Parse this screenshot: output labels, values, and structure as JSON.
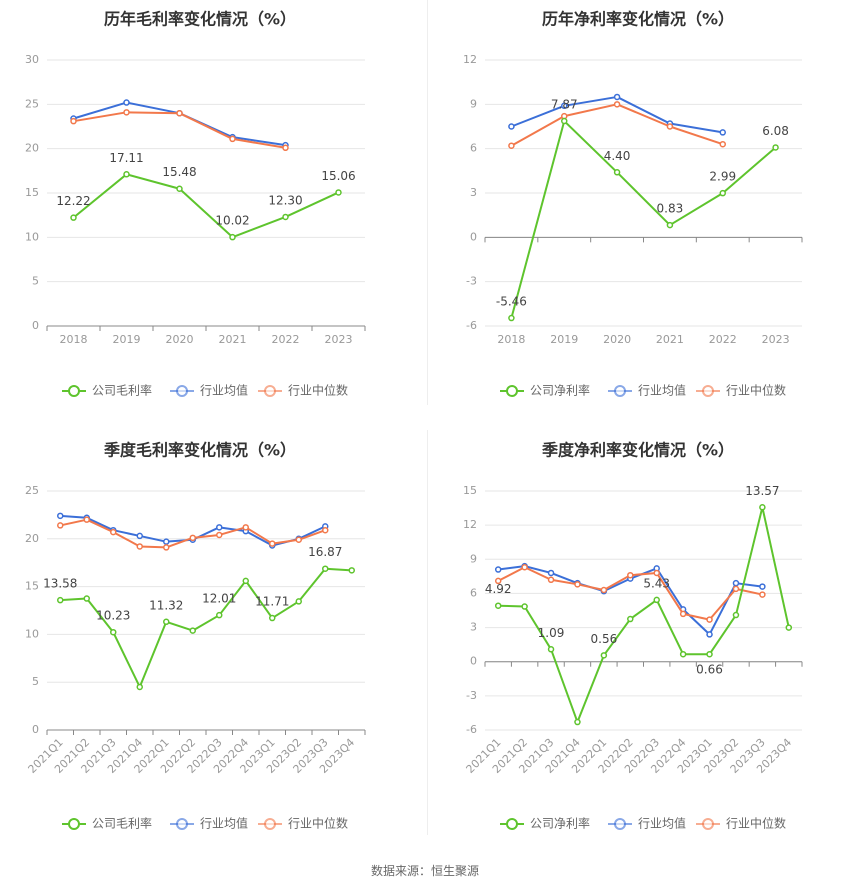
{
  "colors": {
    "company": "#5ec42d",
    "average": "#3b6fd8",
    "median": "#f2784b",
    "grid": "#e6e6e6",
    "axis": "#888888",
    "tick_text": "#999999",
    "label_text": "#444444",
    "title_text": "#333333"
  },
  "footer": "数据来源：恒生聚源",
  "chart_data": [
    {
      "id": "annual-gross",
      "type": "line",
      "title": "历年毛利率变化情况（%）",
      "categories": [
        "2018",
        "2019",
        "2020",
        "2021",
        "2022",
        "2023"
      ],
      "yticks": [
        0,
        5,
        10,
        15,
        20,
        25,
        30
      ],
      "ylim": [
        0,
        30
      ],
      "series": [
        {
          "name": "公司毛利率",
          "key": "company",
          "values": [
            12.22,
            17.11,
            15.48,
            10.02,
            12.3,
            15.06
          ]
        },
        {
          "name": "行业均值",
          "key": "average",
          "values": [
            23.4,
            25.2,
            24.0,
            21.3,
            20.4,
            null
          ]
        },
        {
          "name": "行业中位数",
          "key": "median",
          "values": [
            23.1,
            24.1,
            24.0,
            21.1,
            20.1,
            null
          ]
        }
      ],
      "data_labels": [
        {
          "index": 0,
          "text": "12.22",
          "pos": "above"
        },
        {
          "index": 1,
          "text": "17.11",
          "pos": "above"
        },
        {
          "index": 2,
          "text": "15.48",
          "pos": "above"
        },
        {
          "index": 3,
          "text": "10.02",
          "pos": "above"
        },
        {
          "index": 4,
          "text": "12.30",
          "pos": "above"
        },
        {
          "index": 5,
          "text": "15.06",
          "pos": "above"
        }
      ]
    },
    {
      "id": "annual-net",
      "type": "line",
      "title": "历年净利率变化情况（%）",
      "categories": [
        "2018",
        "2019",
        "2020",
        "2021",
        "2022",
        "2023"
      ],
      "yticks": [
        -6,
        -3,
        0,
        3,
        6,
        9,
        12
      ],
      "ylim": [
        -6,
        12
      ],
      "series": [
        {
          "name": "公司净利率",
          "key": "company",
          "values": [
            -5.46,
            7.87,
            4.4,
            0.83,
            2.99,
            6.08
          ]
        },
        {
          "name": "行业均值",
          "key": "average",
          "values": [
            7.5,
            8.9,
            9.5,
            7.7,
            7.1,
            null
          ]
        },
        {
          "name": "行业中位数",
          "key": "median",
          "values": [
            6.2,
            8.2,
            9.0,
            7.5,
            6.3,
            null
          ]
        }
      ],
      "data_labels": [
        {
          "index": 0,
          "text": "-5.46",
          "pos": "above"
        },
        {
          "index": 1,
          "text": "7.87",
          "pos": "above"
        },
        {
          "index": 2,
          "text": "4.40",
          "pos": "above"
        },
        {
          "index": 3,
          "text": "0.83",
          "pos": "above"
        },
        {
          "index": 4,
          "text": "2.99",
          "pos": "above"
        },
        {
          "index": 5,
          "text": "6.08",
          "pos": "above"
        }
      ]
    },
    {
      "id": "quarterly-gross",
      "type": "line",
      "title": "季度毛利率变化情况（%）",
      "categories": [
        "2021Q1",
        "2021Q2",
        "2021Q3",
        "2021Q4",
        "2022Q1",
        "2022Q2",
        "2022Q3",
        "2022Q4",
        "2023Q1",
        "2023Q2",
        "2023Q3",
        "2023Q4"
      ],
      "yticks": [
        0,
        5,
        10,
        15,
        20,
        25
      ],
      "ylim": [
        0,
        25
      ],
      "rotate_x": true,
      "series": [
        {
          "name": "公司毛利率",
          "key": "company",
          "values": [
            13.58,
            13.75,
            10.23,
            4.5,
            11.32,
            10.4,
            12.01,
            15.6,
            11.71,
            13.45,
            16.87,
            16.7
          ]
        },
        {
          "name": "行业均值",
          "key": "average",
          "values": [
            22.4,
            22.2,
            20.9,
            20.3,
            19.7,
            19.9,
            21.2,
            20.8,
            19.3,
            20.0,
            21.3,
            null
          ]
        },
        {
          "name": "行业中位数",
          "key": "median",
          "values": [
            21.4,
            22.0,
            20.7,
            19.2,
            19.1,
            20.1,
            20.4,
            21.2,
            19.5,
            19.9,
            20.9,
            null
          ]
        }
      ],
      "data_labels": [
        {
          "index": 0,
          "text": "13.58",
          "pos": "above"
        },
        {
          "index": 2,
          "text": "10.23",
          "pos": "above"
        },
        {
          "index": 4,
          "text": "11.32",
          "pos": "above"
        },
        {
          "index": 6,
          "text": "12.01",
          "pos": "above"
        },
        {
          "index": 8,
          "text": "11.71",
          "pos": "above"
        },
        {
          "index": 10,
          "text": "16.87",
          "pos": "above"
        }
      ]
    },
    {
      "id": "quarterly-net",
      "type": "line",
      "title": "季度净利率变化情况（%）",
      "categories": [
        "2021Q1",
        "2021Q2",
        "2021Q3",
        "2021Q4",
        "2022Q1",
        "2022Q2",
        "2022Q3",
        "2022Q4",
        "2023Q1",
        "2023Q2",
        "2023Q3",
        "2023Q4"
      ],
      "yticks": [
        -6,
        -3,
        0,
        3,
        6,
        9,
        12,
        15
      ],
      "ylim": [
        -6,
        15
      ],
      "rotate_x": true,
      "series": [
        {
          "name": "公司净利率",
          "key": "company",
          "values": [
            4.92,
            4.85,
            1.09,
            -5.3,
            0.56,
            3.75,
            5.43,
            0.66,
            0.66,
            4.1,
            13.57,
            3.0
          ]
        },
        {
          "name": "行业均值",
          "key": "average",
          "values": [
            8.1,
            8.4,
            7.8,
            6.9,
            6.2,
            7.3,
            8.2,
            4.6,
            2.4,
            6.9,
            6.6,
            null
          ]
        },
        {
          "name": "行业中位数",
          "key": "median",
          "values": [
            7.1,
            8.3,
            7.2,
            6.8,
            6.3,
            7.6,
            7.8,
            4.2,
            3.7,
            6.4,
            5.9,
            null
          ]
        }
      ],
      "data_labels": [
        {
          "index": 0,
          "text": "4.92",
          "pos": "above"
        },
        {
          "index": 2,
          "text": "1.09",
          "pos": "above"
        },
        {
          "index": 4,
          "text": "0.56",
          "pos": "above"
        },
        {
          "index": 6,
          "text": "5.43",
          "pos": "above"
        },
        {
          "index": 8,
          "text": "0.66",
          "pos": "below"
        },
        {
          "index": 10,
          "text": "13.57",
          "pos": "above"
        }
      ]
    }
  ]
}
